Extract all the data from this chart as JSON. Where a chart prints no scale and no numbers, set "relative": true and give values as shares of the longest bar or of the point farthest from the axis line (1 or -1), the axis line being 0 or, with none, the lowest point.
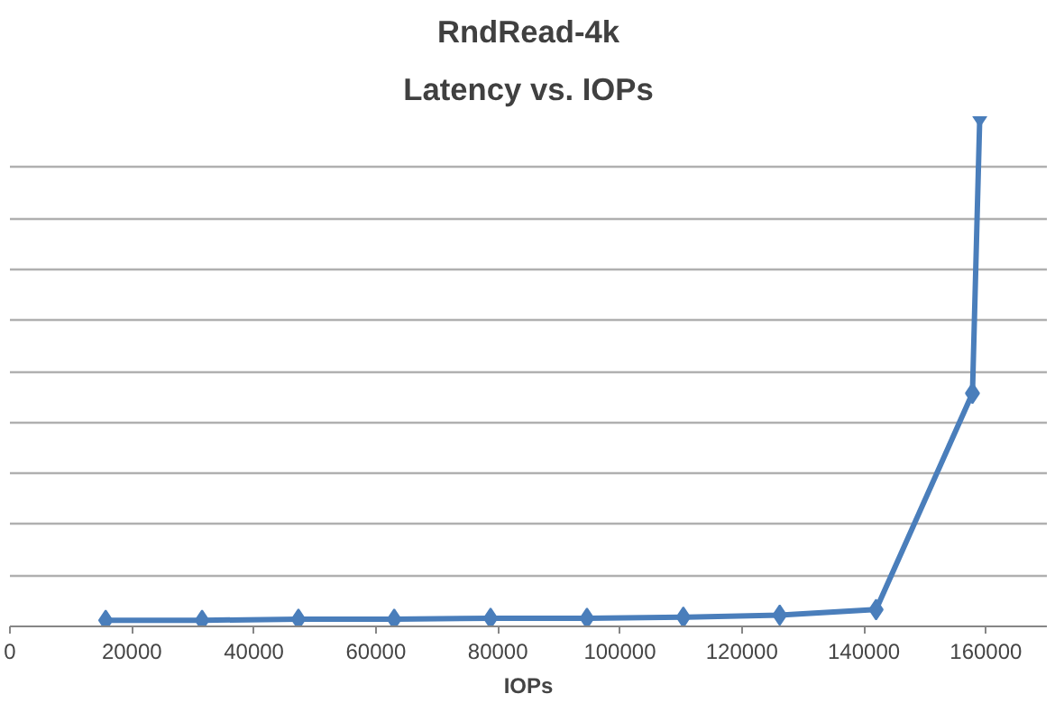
{
  "chart_data": {
    "type": "line",
    "title": "RndRead-4k",
    "subtitle": "Latency vs. IOPs",
    "xlabel": "IOPs",
    "x": [
      15700,
      31500,
      47300,
      63000,
      78800,
      94600,
      110400,
      126200,
      142000,
      157800,
      159000
    ],
    "series": [
      {
        "color": "#4a7ebb",
        "values": [
          0.012,
          0.012,
          0.014,
          0.014,
          0.016,
          0.016,
          0.018,
          0.022,
          0.033,
          0.457,
          1.0
        ]
      }
    ],
    "relative": true,
    "xlim": [
      0,
      170000
    ],
    "xticks": [
      0,
      20000,
      40000,
      60000,
      80000,
      100000,
      120000,
      140000,
      160000
    ],
    "grid": "y",
    "marker": "diamond",
    "line_style": "solid"
  }
}
